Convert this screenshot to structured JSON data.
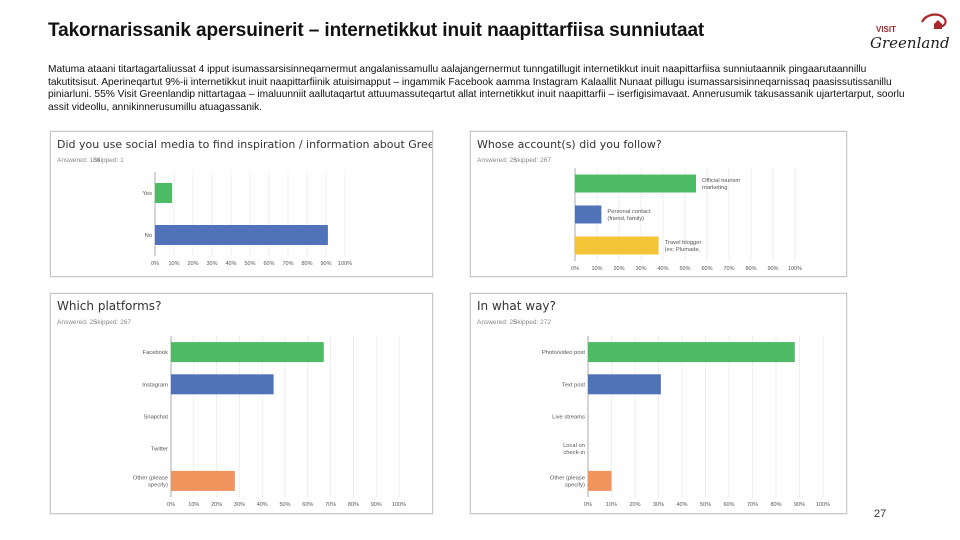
{
  "slide": {
    "title": "Takornarissanik apersuinerit – internetikkut inuit naapittarfiisa sunniutaat",
    "body": "Matuma ataani titartagartaliussat 4 ipput isumassarsisinneqarnermut angalanissamullu aalajangernermut tunngatillugit internetikkut inuit naapittarfiisa sunniutaannik pingaarutaannillu takutitsisut. Aperineqartut 9%-ii internetikkut inuit naapittarfiinik atuisimapput – ingammik Facebook aamma Instagram Kalaallit Nunaat pillugu isumassarsisinneqarnissaq paasissutissanillu piniarluni. 55% Visit Greenlandip nittartagaa – imaluunniit aallutaqartut attuumassuteqartut allat internetikkut inuit naapittarfii – iserfigisimavaat. Annerusumik takusassanik ujartertarput, soorlu assit videollu, annikinnerusumillu atuagassanik.",
    "page_number": "27"
  },
  "logo": {
    "line1": "VISIT",
    "line2": "Greenland"
  },
  "colors": {
    "green": "#4dbb63",
    "blue": "#4f72b8",
    "yellow": "#f3c338",
    "orange": "#f0935c",
    "axis": "#cfcfcf",
    "text": "#555555"
  },
  "chart_data": [
    {
      "type": "bar",
      "orientation": "horizontal",
      "title": "Did you use social media to find inspiration / information about Greenland?",
      "answered": "Answered: 186",
      "skipped": "Skipped: 1",
      "categories": [
        "Yes",
        "No"
      ],
      "values": [
        9,
        91
      ],
      "colors": [
        "#4dbb63",
        "#4f72b8"
      ],
      "xticks": [
        "0%",
        "10%",
        "20%",
        "30%",
        "40%",
        "50%",
        "60%",
        "70%",
        "80%",
        "90%",
        "100%"
      ],
      "xlim": [
        0,
        100
      ]
    },
    {
      "type": "bar",
      "orientation": "horizontal",
      "title": "Whose account(s) did you follow?",
      "answered": "Answered: 25",
      "skipped": "Skipped: 267",
      "categories": [
        "Official tourism marketing company (ex: Visit Greenland)",
        "Personal contact (friend, family)",
        "Travel blogger (ex: Plumade, Malt)"
      ],
      "values": [
        55,
        12,
        38
      ],
      "colors": [
        "#4dbb63",
        "#4f72b8",
        "#f3c338"
      ],
      "xticks": [
        "0%",
        "10%",
        "20%",
        "30%",
        "40%",
        "50%",
        "60%",
        "70%",
        "80%",
        "90%",
        "100%"
      ],
      "xlim": [
        0,
        100
      ]
    },
    {
      "type": "bar",
      "orientation": "horizontal",
      "title": "Which platforms?",
      "answered": "Answered: 25",
      "skipped": "Skipped: 267",
      "categories": [
        "Facebook",
        "Instagram",
        "Snapchat",
        "Twitter",
        "Other (please specify)"
      ],
      "values": [
        67,
        45,
        0,
        0,
        28
      ],
      "colors": [
        "#4dbb63",
        "#4f72b8",
        "#f3c338",
        "#f3c338",
        "#f0935c"
      ],
      "xticks": [
        "0%",
        "10%",
        "20%",
        "30%",
        "40%",
        "50%",
        "60%",
        "70%",
        "80%",
        "90%",
        "100%"
      ],
      "xlim": [
        0,
        100
      ]
    },
    {
      "type": "bar",
      "orientation": "horizontal",
      "title": "In what way?",
      "answered": "Answered: 25",
      "skipped": "Skipped: 272",
      "categories": [
        "Photo/video post",
        "Text post",
        "Live streams",
        "Local on check-in",
        "Other (please specify)"
      ],
      "values": [
        88,
        31,
        0,
        0,
        10
      ],
      "colors": [
        "#4dbb63",
        "#4f72b8",
        "#f3c338",
        "#f3c338",
        "#f0935c"
      ],
      "xticks": [
        "0%",
        "10%",
        "20%",
        "30%",
        "40%",
        "50%",
        "60%",
        "70%",
        "80%",
        "90%",
        "100%"
      ],
      "xlim": [
        0,
        100
      ]
    }
  ]
}
